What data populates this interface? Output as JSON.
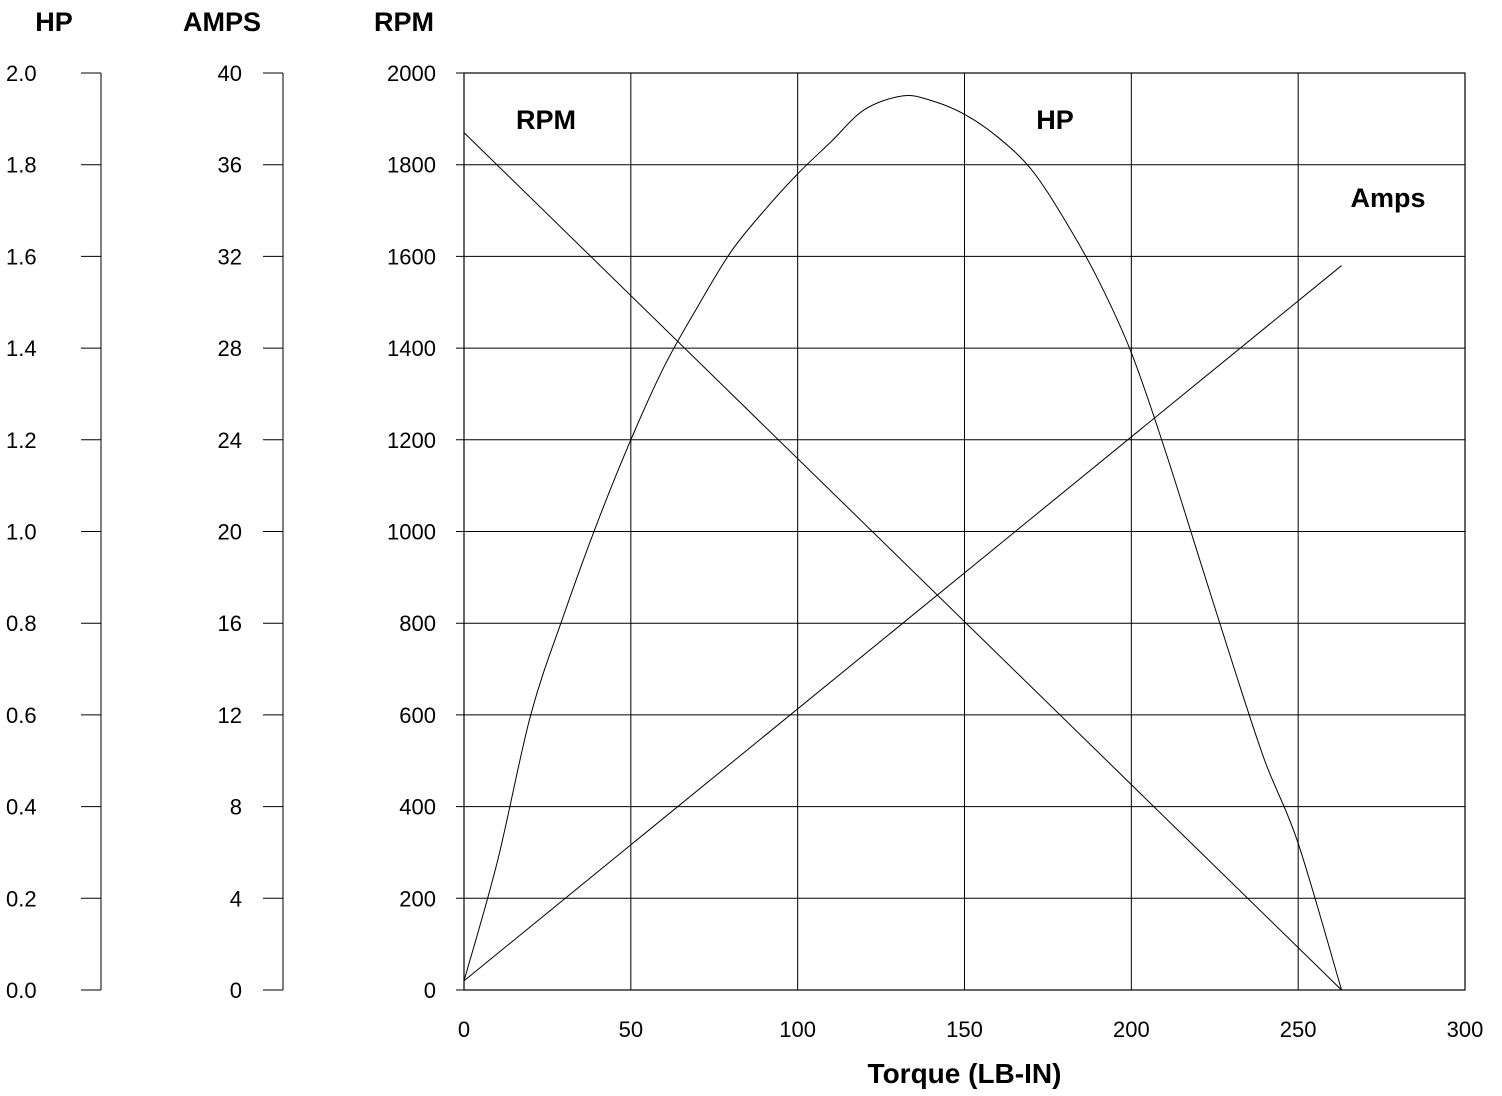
{
  "chart_data": {
    "type": "line",
    "xlabel": "Torque (LB-IN)",
    "x_ticks": [
      "0",
      "50",
      "100",
      "150",
      "200",
      "250",
      "300"
    ],
    "xlim": [
      0,
      300
    ],
    "axes": {
      "hp": {
        "title": "HP",
        "ticks": [
          "0.0",
          "0.2",
          "0.4",
          "0.6",
          "0.8",
          "1.0",
          "1.2",
          "1.4",
          "1.6",
          "1.8",
          "2.0"
        ],
        "ylim": [
          0,
          2.0
        ]
      },
      "amps": {
        "title": "AMPS",
        "ticks": [
          "0",
          "4",
          "8",
          "12",
          "16",
          "20",
          "24",
          "28",
          "32",
          "36",
          "40"
        ],
        "ylim": [
          0,
          40
        ]
      },
      "rpm": {
        "title": "RPM",
        "ticks": [
          "0",
          "200",
          "400",
          "600",
          "800",
          "1000",
          "1200",
          "1400",
          "1600",
          "1800",
          "2000"
        ],
        "ylim": [
          0,
          2000
        ]
      }
    },
    "grid": true,
    "series": [
      {
        "name": "RPM",
        "axis": "rpm",
        "label": "RPM",
        "x": [
          0,
          263
        ],
        "y": [
          1870,
          0
        ]
      },
      {
        "name": "Amps",
        "axis": "amps",
        "label": "Amps",
        "x": [
          0,
          263
        ],
        "y": [
          0.4,
          31.6
        ]
      },
      {
        "name": "HP",
        "axis": "hp",
        "label": "HP",
        "x": [
          0,
          10,
          20,
          30,
          40,
          50,
          60,
          70,
          80,
          90,
          100,
          110,
          120,
          131.5,
          140,
          150,
          160,
          170,
          180,
          190,
          200,
          210,
          220,
          230,
          240,
          250,
          263
        ],
        "y": [
          0.02,
          0.28,
          0.6,
          0.82,
          1.02,
          1.2,
          1.36,
          1.49,
          1.61,
          1.7,
          1.78,
          1.85,
          1.92,
          1.95,
          1.94,
          1.91,
          1.86,
          1.79,
          1.68,
          1.55,
          1.39,
          1.18,
          0.95,
          0.72,
          0.5,
          0.32,
          0.0
        ]
      }
    ]
  }
}
